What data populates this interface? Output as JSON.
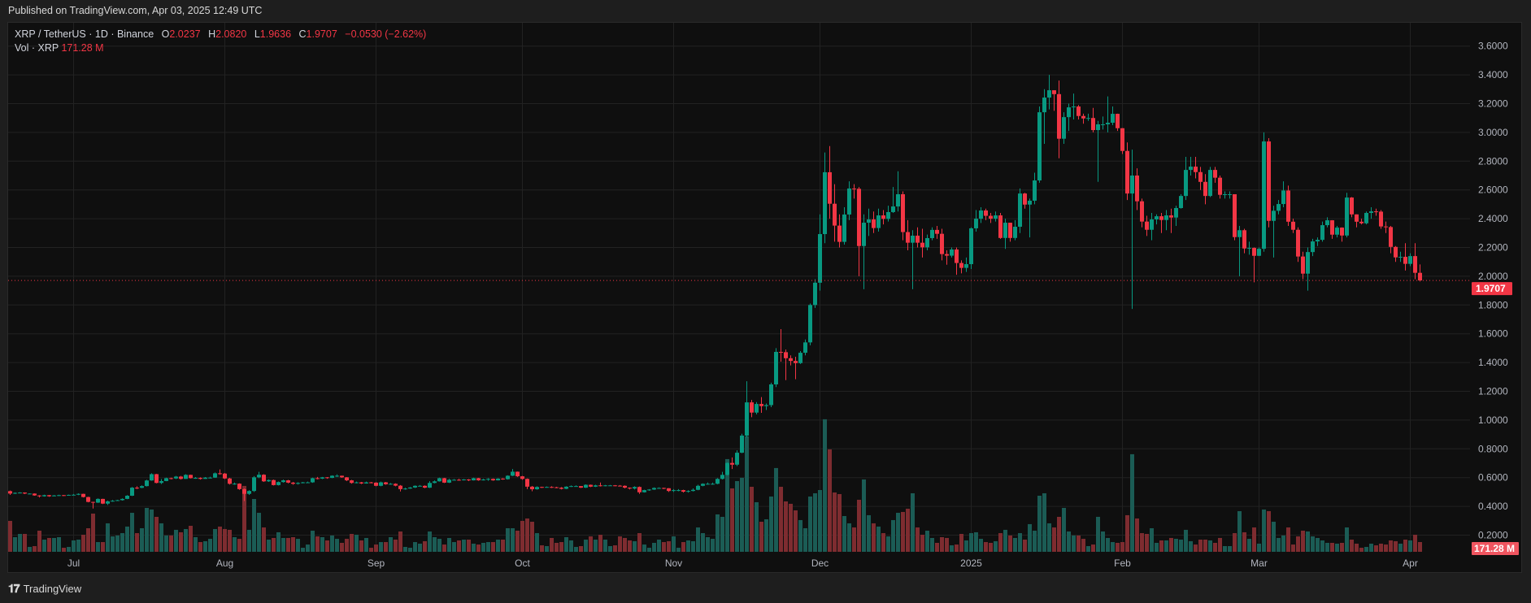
{
  "header": {
    "published": "Published on TradingView.com, Apr 03, 2025 12:49 UTC"
  },
  "legend": {
    "symbol": "XRP / TetherUS · 1D · Binance",
    "o_label": "O",
    "o": "2.0237",
    "h_label": "H",
    "h": "2.0820",
    "l_label": "L",
    "l": "1.9636",
    "c_label": "C",
    "c": "1.9707",
    "change": "−0.0530 (−2.62%)",
    "vol_label": "Vol · XRP",
    "vol": "171.28 M"
  },
  "footer": {
    "brand": "TradingView",
    "logo_glyph": "17"
  },
  "colors": {
    "up": "#089981",
    "down": "#f23645",
    "vol_up": "#1b5c55",
    "vol_down": "#7e2c30",
    "grid": "#222222",
    "last_price_badge": "#f23645",
    "volume_badge": "#f05560"
  },
  "chart_data": {
    "type": "candlestick",
    "symbol": "XRP / TetherUS",
    "interval": "1D",
    "start_date": "2024-06-18",
    "end_date": "2025-04-03",
    "first_open": 0.506,
    "y_axis": {
      "min": 0.2,
      "max": 3.6,
      "step": 0.2,
      "ticks": [
        "3.6000",
        "3.4000",
        "3.2000",
        "3.0000",
        "2.8000",
        "2.6000",
        "2.4000",
        "2.2000",
        "2.0000",
        "1.8000",
        "1.6000",
        "1.4000",
        "1.2000",
        "1.0000",
        "0.8000",
        "0.6000",
        "0.4000",
        "0.2000"
      ]
    },
    "x_ticks": [
      {
        "label": "Jul",
        "date": "2024-07-01"
      },
      {
        "label": "Aug",
        "date": "2024-08-01"
      },
      {
        "label": "Sep",
        "date": "2024-09-01"
      },
      {
        "label": "Oct",
        "date": "2024-10-01"
      },
      {
        "label": "Nov",
        "date": "2024-11-01"
      },
      {
        "label": "Dec",
        "date": "2024-12-01"
      },
      {
        "label": "2025",
        "date": "2025-01-01"
      },
      {
        "label": "Feb",
        "date": "2025-02-01"
      },
      {
        "label": "Mar",
        "date": "2025-03-01"
      },
      {
        "label": "Apr",
        "date": "2025-04-01"
      }
    ],
    "grid": true,
    "last_price": 1.9707,
    "last_price_label": "1.9707",
    "last_volume_label": "171.28 M",
    "volume_unit": "M XRP",
    "close": [
      0.489,
      0.494,
      0.496,
      0.489,
      0.489,
      0.476,
      0.47,
      0.478,
      0.47,
      0.476,
      0.478,
      0.476,
      0.48,
      0.481,
      0.487,
      0.465,
      0.431,
      0.426,
      0.452,
      0.419,
      0.435,
      0.439,
      0.443,
      0.452,
      0.474,
      0.53,
      0.529,
      0.541,
      0.58,
      0.624,
      0.563,
      0.576,
      0.596,
      0.594,
      0.607,
      0.591,
      0.619,
      0.596,
      0.598,
      0.591,
      0.6,
      0.6,
      0.63,
      0.628,
      0.594,
      0.557,
      0.558,
      0.52,
      0.487,
      0.507,
      0.602,
      0.62,
      0.574,
      0.583,
      0.548,
      0.569,
      0.581,
      0.565,
      0.557,
      0.563,
      0.567,
      0.567,
      0.596,
      0.593,
      0.602,
      0.598,
      0.613,
      0.613,
      0.602,
      0.581,
      0.563,
      0.567,
      0.559,
      0.567,
      0.565,
      0.543,
      0.567,
      0.554,
      0.557,
      0.544,
      0.52,
      0.524,
      0.531,
      0.543,
      0.543,
      0.53,
      0.563,
      0.574,
      0.596,
      0.565,
      0.585,
      0.585,
      0.583,
      0.587,
      0.581,
      0.596,
      0.581,
      0.587,
      0.591,
      0.581,
      0.593,
      0.589,
      0.613,
      0.641,
      0.609,
      0.591,
      0.537,
      0.519,
      0.535,
      0.533,
      0.535,
      0.533,
      0.53,
      0.522,
      0.537,
      0.541,
      0.541,
      0.53,
      0.55,
      0.537,
      0.546,
      0.543,
      0.546,
      0.546,
      0.544,
      0.543,
      0.53,
      0.524,
      0.535,
      0.498,
      0.513,
      0.517,
      0.528,
      0.528,
      0.526,
      0.507,
      0.513,
      0.513,
      0.502,
      0.507,
      0.515,
      0.543,
      0.557,
      0.557,
      0.557,
      0.591,
      0.619,
      0.702,
      0.69,
      0.773,
      0.892,
      1.123,
      1.052,
      1.112,
      1.097,
      1.104,
      1.248,
      1.474,
      1.472,
      1.43,
      1.411,
      1.396,
      1.468,
      1.54,
      1.8,
      1.955,
      2.293,
      2.723,
      2.504,
      2.352,
      2.239,
      2.429,
      2.61,
      2.608,
      2.21,
      2.372,
      2.395,
      2.335,
      2.423,
      2.399,
      2.446,
      2.485,
      2.57,
      2.307,
      2.233,
      2.282,
      2.233,
      2.201,
      2.265,
      2.322,
      2.295,
      2.154,
      2.143,
      2.186,
      2.092,
      2.058,
      2.084,
      2.333,
      2.4,
      2.457,
      2.42,
      2.4,
      2.423,
      2.266,
      2.372,
      2.266,
      2.344,
      2.575,
      2.498,
      2.525,
      2.666,
      3.14,
      3.242,
      3.293,
      3.266,
      2.956,
      3.106,
      3.174,
      3.18,
      3.114,
      3.097,
      3.1,
      3.016,
      3.056,
      3.056,
      3.067,
      3.129,
      3.029,
      2.871,
      2.575,
      2.7,
      2.521,
      2.38,
      2.323,
      2.395,
      2.417,
      2.391,
      2.423,
      2.408,
      2.474,
      2.558,
      2.739,
      2.762,
      2.724,
      2.656,
      2.558,
      2.739,
      2.685,
      2.566,
      2.57,
      2.57,
      2.272,
      2.32,
      2.193,
      2.197,
      2.142,
      2.191,
      2.937,
      2.385,
      2.455,
      2.502,
      2.596,
      2.379,
      2.323,
      2.137,
      2.018,
      2.168,
      2.242,
      2.253,
      2.355,
      2.389,
      2.289,
      2.338,
      2.283,
      2.547,
      2.43,
      2.379,
      2.368,
      2.44,
      2.451,
      2.449,
      2.346,
      2.342,
      2.204,
      2.131,
      2.135,
      2.086,
      2.14,
      2.0237,
      1.9707
    ],
    "high": [
      0.51,
      0.497,
      0.499,
      0.497,
      0.491,
      0.49,
      0.478,
      0.481,
      0.48,
      0.479,
      0.481,
      0.48,
      0.482,
      0.486,
      0.49,
      0.488,
      0.467,
      0.432,
      0.456,
      0.453,
      0.44,
      0.444,
      0.446,
      0.456,
      0.478,
      0.535,
      0.54,
      0.546,
      0.585,
      0.63,
      0.626,
      0.59,
      0.6,
      0.6,
      0.612,
      0.612,
      0.624,
      0.62,
      0.604,
      0.602,
      0.604,
      0.606,
      0.636,
      0.657,
      0.632,
      0.598,
      0.565,
      0.56,
      0.524,
      0.512,
      0.61,
      0.64,
      0.624,
      0.588,
      0.586,
      0.573,
      0.586,
      0.584,
      0.57,
      0.568,
      0.57,
      0.572,
      0.6,
      0.605,
      0.605,
      0.604,
      0.616,
      0.622,
      0.614,
      0.604,
      0.584,
      0.572,
      0.57,
      0.572,
      0.57,
      0.568,
      0.572,
      0.57,
      0.562,
      0.56,
      0.548,
      0.53,
      0.535,
      0.546,
      0.548,
      0.546,
      0.575,
      0.58,
      0.6,
      0.598,
      0.592,
      0.59,
      0.592,
      0.59,
      0.59,
      0.6,
      0.598,
      0.592,
      0.596,
      0.594,
      0.596,
      0.596,
      0.616,
      0.66,
      0.642,
      0.612,
      0.594,
      0.542,
      0.54,
      0.537,
      0.538,
      0.54,
      0.536,
      0.534,
      0.54,
      0.545,
      0.546,
      0.542,
      0.553,
      0.552,
      0.55,
      0.566,
      0.549,
      0.549,
      0.548,
      0.548,
      0.546,
      0.532,
      0.54,
      0.538,
      0.516,
      0.52,
      0.532,
      0.532,
      0.53,
      0.527,
      0.52,
      0.52,
      0.516,
      0.512,
      0.525,
      0.55,
      0.56,
      0.566,
      0.565,
      0.596,
      0.64,
      0.705,
      0.74,
      0.79,
      0.905,
      1.27,
      1.14,
      1.125,
      1.16,
      1.115,
      1.26,
      1.5,
      1.632,
      1.49,
      1.45,
      1.44,
      1.48,
      1.56,
      1.81,
      1.98,
      2.43,
      2.86,
      2.905,
      2.64,
      2.43,
      2.48,
      2.66,
      2.64,
      2.62,
      2.43,
      2.47,
      2.45,
      2.47,
      2.46,
      2.49,
      2.62,
      2.73,
      2.59,
      2.39,
      2.32,
      2.34,
      2.33,
      2.29,
      2.34,
      2.35,
      2.33,
      2.18,
      2.2,
      2.2,
      2.11,
      2.13,
      2.34,
      2.46,
      2.48,
      2.47,
      2.44,
      2.45,
      2.44,
      2.4,
      2.36,
      2.39,
      2.61,
      2.58,
      2.54,
      2.72,
      3.18,
      3.3,
      3.4,
      3.29,
      3.36,
      3.14,
      3.2,
      3.27,
      3.19,
      3.13,
      3.13,
      3.17,
      3.08,
      3.11,
      3.25,
      3.18,
      3.13,
      3.03,
      2.93,
      2.88,
      2.75,
      2.54,
      2.42,
      2.44,
      2.43,
      2.44,
      2.46,
      2.47,
      2.49,
      2.57,
      2.83,
      2.83,
      2.83,
      2.76,
      2.71,
      2.76,
      2.76,
      2.7,
      2.59,
      2.59,
      2.57,
      2.35,
      2.33,
      2.24,
      2.2,
      2.2,
      3.0,
      2.96,
      2.49,
      2.53,
      2.66,
      2.63,
      2.4,
      2.34,
      2.17,
      2.2,
      2.26,
      2.27,
      2.38,
      2.41,
      2.39,
      2.35,
      2.34,
      2.58,
      2.55,
      2.43,
      2.4,
      2.45,
      2.48,
      2.47,
      2.46,
      2.38,
      2.35,
      2.21,
      2.17,
      2.23,
      2.16,
      2.23,
      2.082
    ],
    "low": [
      0.48,
      0.486,
      0.49,
      0.485,
      0.486,
      0.474,
      0.462,
      0.468,
      0.466,
      0.47,
      0.472,
      0.472,
      0.474,
      0.476,
      0.478,
      0.462,
      0.428,
      0.385,
      0.424,
      0.416,
      0.41,
      0.432,
      0.437,
      0.44,
      0.45,
      0.472,
      0.52,
      0.526,
      0.538,
      0.578,
      0.56,
      0.555,
      0.575,
      0.588,
      0.59,
      0.586,
      0.6,
      0.594,
      0.592,
      0.586,
      0.592,
      0.594,
      0.598,
      0.62,
      0.59,
      0.552,
      0.55,
      0.515,
      0.437,
      0.48,
      0.5,
      0.596,
      0.57,
      0.57,
      0.545,
      0.545,
      0.565,
      0.56,
      0.55,
      0.552,
      0.56,
      0.562,
      0.564,
      0.588,
      0.59,
      0.592,
      0.596,
      0.604,
      0.598,
      0.576,
      0.558,
      0.56,
      0.555,
      0.558,
      0.56,
      0.54,
      0.54,
      0.55,
      0.55,
      0.54,
      0.504,
      0.516,
      0.522,
      0.528,
      0.538,
      0.526,
      0.528,
      0.56,
      0.572,
      0.562,
      0.562,
      0.58,
      0.578,
      0.58,
      0.576,
      0.58,
      0.578,
      0.58,
      0.578,
      0.578,
      0.58,
      0.585,
      0.586,
      0.61,
      0.605,
      0.585,
      0.52,
      0.505,
      0.516,
      0.528,
      0.53,
      0.528,
      0.526,
      0.518,
      0.52,
      0.535,
      0.536,
      0.528,
      0.528,
      0.534,
      0.535,
      0.538,
      0.54,
      0.542,
      0.54,
      0.538,
      0.525,
      0.518,
      0.518,
      0.487,
      0.496,
      0.508,
      0.514,
      0.522,
      0.52,
      0.5,
      0.5,
      0.505,
      0.496,
      0.496,
      0.504,
      0.512,
      0.54,
      0.55,
      0.55,
      0.554,
      0.587,
      0.615,
      0.66,
      0.68,
      0.77,
      0.88,
      1.02,
      1.04,
      1.05,
      1.07,
      1.09,
      1.23,
      1.406,
      1.278,
      1.38,
      1.284,
      1.39,
      1.45,
      1.52,
      1.78,
      1.9,
      2.23,
      2.4,
      2.24,
      2.2,
      2.22,
      2.39,
      2.54,
      2.0,
      1.91,
      2.28,
      2.3,
      2.31,
      2.36,
      2.38,
      2.44,
      2.45,
      2.25,
      2.18,
      1.91,
      2.2,
      2.13,
      2.18,
      2.25,
      2.26,
      2.11,
      2.08,
      2.13,
      2.01,
      2.02,
      2.03,
      2.05,
      2.31,
      2.37,
      2.39,
      2.37,
      2.38,
      2.26,
      2.19,
      2.24,
      2.25,
      2.3,
      2.47,
      2.27,
      2.5,
      2.65,
      2.92,
      3.16,
      3.15,
      2.82,
      2.92,
      3.01,
      3.09,
      3.09,
      3.06,
      3.08,
      3.0,
      2.656,
      3.02,
      3.0,
      3.05,
      3.01,
      2.85,
      2.53,
      1.773,
      2.46,
      2.34,
      2.28,
      2.25,
      2.36,
      2.3,
      2.32,
      2.3,
      2.35,
      2.47,
      2.53,
      2.7,
      2.68,
      2.6,
      2.5,
      2.55,
      2.65,
      2.54,
      2.54,
      2.54,
      2.25,
      2.0,
      2.16,
      2.15,
      1.958,
      2.14,
      2.17,
      2.34,
      2.13,
      2.43,
      2.48,
      2.35,
      2.3,
      2.1,
      1.98,
      1.9,
      2.14,
      2.21,
      2.24,
      2.34,
      2.26,
      2.27,
      2.24,
      2.27,
      2.41,
      2.34,
      2.36,
      2.36,
      2.4,
      2.42,
      2.33,
      2.3,
      2.16,
      2.1,
      2.1,
      2.04,
      2.07,
      1.98,
      1.9636
    ],
    "volume_m": [
      543,
      257,
      314,
      314,
      86,
      100,
      371,
      214,
      243,
      243,
      257,
      71,
      86,
      200,
      214,
      300,
      414,
      671,
      171,
      171,
      500,
      271,
      286,
      328,
      443,
      685,
      328,
      414,
      771,
      743,
      614,
      500,
      286,
      286,
      386,
      343,
      400,
      457,
      257,
      171,
      186,
      228,
      400,
      443,
      400,
      386,
      257,
      228,
      1157,
      386,
      928,
      685,
      428,
      214,
      243,
      343,
      243,
      243,
      257,
      228,
      71,
      128,
      371,
      271,
      257,
      200,
      286,
      228,
      157,
      228,
      314,
      300,
      200,
      243,
      71,
      128,
      171,
      171,
      257,
      214,
      357,
      86,
      71,
      171,
      143,
      186,
      357,
      257,
      228,
      128,
      243,
      171,
      200,
      214,
      214,
      143,
      128,
      157,
      171,
      171,
      214,
      214,
      414,
      414,
      371,
      543,
      585,
      528,
      328,
      114,
      100,
      243,
      157,
      171,
      257,
      200,
      86,
      100,
      214,
      271,
      214,
      300,
      214,
      100,
      114,
      271,
      243,
      200,
      186,
      328,
      128,
      71,
      157,
      214,
      171,
      186,
      271,
      71,
      171,
      200,
      186,
      428,
      328,
      257,
      228,
      657,
      614,
      1628,
      1114,
      1242,
      1300,
      2028,
      1142,
      871,
      528,
      571,
      971,
      1471,
      1142,
      885,
      843,
      728,
      557,
      414,
      971,
      1028,
      1085,
      2328,
      1799,
      1042,
      1014,
      628,
      500,
      428,
      914,
      1271,
      643,
      500,
      443,
      328,
      271,
      557,
      685,
      700,
      757,
      1028,
      428,
      300,
      371,
      243,
      157,
      257,
      243,
      114,
      128,
      314,
      200,
      328,
      343,
      228,
      171,
      157,
      186,
      328,
      386,
      286,
      243,
      328,
      214,
      486,
      371,
      985,
      1028,
      500,
      428,
      614,
      771,
      357,
      286,
      286,
      228,
      100,
      128,
      614,
      357,
      243,
      171,
      157,
      171,
      643,
      1714,
      585,
      328,
      314,
      414,
      157,
      200,
      200,
      243,
      228,
      214,
      386,
      186,
      128,
      214,
      214,
      200,
      157,
      243,
      100,
      100,
      328,
      714,
      343,
      228,
      428,
      143,
      743,
      714,
      528,
      243,
      286,
      428,
      128,
      271,
      371,
      357,
      271,
      243,
      200,
      157,
      157,
      143,
      157,
      428,
      214,
      143,
      71,
      86,
      143,
      114,
      143,
      128,
      200,
      186,
      143,
      214,
      200,
      300,
      171.28
    ]
  }
}
